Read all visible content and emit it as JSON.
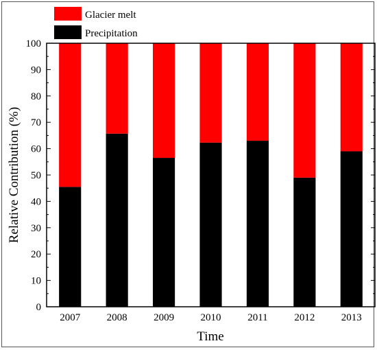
{
  "chart_data": {
    "type": "bar",
    "stacked": true,
    "xlabel": "Time",
    "ylabel": "Relative Contribution (%)",
    "categories": [
      "2007",
      "2008",
      "2009",
      "2010",
      "2011",
      "2012",
      "2013"
    ],
    "series": [
      {
        "name": "Precipitation",
        "color": "#000000",
        "values": [
          45.5,
          65.7,
          56.5,
          62.3,
          63.0,
          49.0,
          59.0
        ]
      },
      {
        "name": "Glacier melt",
        "color": "#ff0000",
        "values": [
          54.5,
          34.3,
          43.5,
          37.7,
          37.0,
          51.0,
          41.0
        ]
      }
    ],
    "ylim": [
      0,
      100
    ],
    "yticks": [
      0,
      10,
      20,
      30,
      40,
      50,
      60,
      70,
      80,
      90,
      100
    ],
    "legend": {
      "placement": "top-left, outside plot",
      "entries": [
        {
          "label": "Glacier melt",
          "color": "#ff0000"
        },
        {
          "label": "Precipitation",
          "color": "#000000"
        }
      ]
    },
    "grid": false
  }
}
